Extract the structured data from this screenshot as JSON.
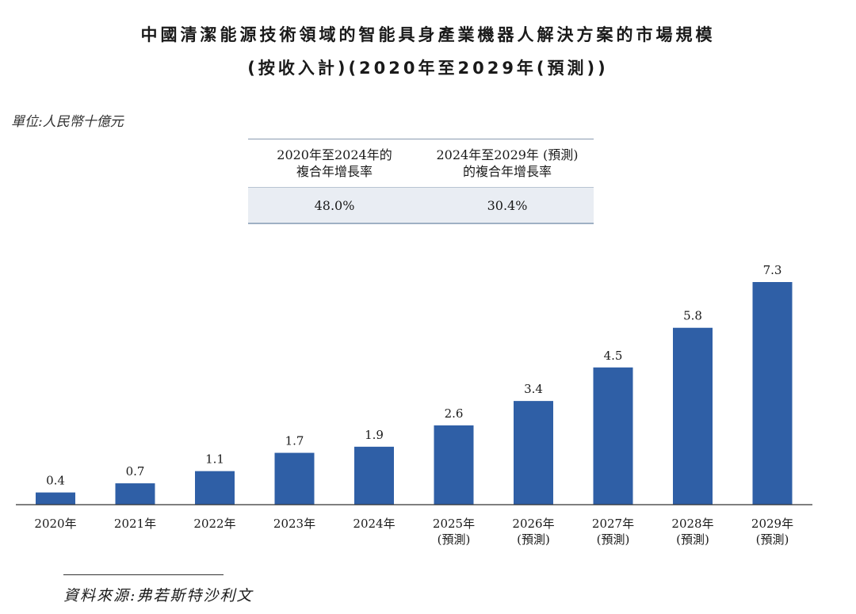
{
  "title_line1": "中國清潔能源技術領域的智能具身產業機器人解決方案的市場規模",
  "title_line2": "(按收入計)(2020年至2029年(預測))",
  "unit_label": "單位:人民幣十億元",
  "cagr_table": {
    "col1_header_line1": "2020年至2024年的",
    "col1_header_line2": "複合年增長率",
    "col2_header_line1": "2024年至2029年 (預測)",
    "col2_header_line2": "的複合年增長率",
    "col1_value": "48.0%",
    "col2_value": "30.4%"
  },
  "source": "資料來源:弗若斯特沙利文",
  "chart_data": {
    "type": "bar",
    "categories": [
      "2020年",
      "2021年",
      "2022年",
      "2023年",
      "2024年",
      "2025年",
      "2026年",
      "2027年",
      "2028年",
      "2029年"
    ],
    "category_sublabels": [
      "",
      "",
      "",
      "",
      "",
      "(預測)",
      "(預測)",
      "(預測)",
      "(預測)",
      "(預測)"
    ],
    "values": [
      0.4,
      0.7,
      1.1,
      1.7,
      1.9,
      2.6,
      3.4,
      4.5,
      5.8,
      7.3
    ],
    "value_labels": [
      "0.4",
      "0.7",
      "1.1",
      "1.7",
      "1.9",
      "2.6",
      "3.4",
      "4.5",
      "5.8",
      "7.3"
    ],
    "bar_color": "#2f5fa6",
    "ylim": [
      0,
      7.3
    ],
    "grid": false,
    "legend": "none"
  }
}
